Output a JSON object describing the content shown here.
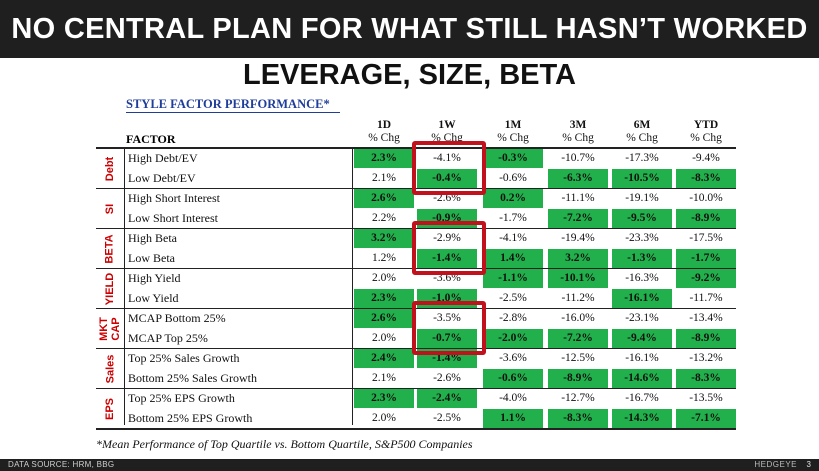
{
  "banner": {
    "title": "NO CENTRAL PLAN FOR WHAT STILL HASN’T WORKED"
  },
  "subtitle": "LEVERAGE, SIZE, BETA",
  "table": {
    "title": "STYLE FACTOR PERFORMANCE*",
    "factor_header": "FACTOR",
    "columns": [
      {
        "period": "1D",
        "unit": "% Chg"
      },
      {
        "period": "1W",
        "unit": "% Chg"
      },
      {
        "period": "1M",
        "unit": "% Chg"
      },
      {
        "period": "3M",
        "unit": "% Chg"
      },
      {
        "period": "6M",
        "unit": "% Chg"
      },
      {
        "period": "YTD",
        "unit": "% Chg"
      }
    ],
    "groups": [
      {
        "label": "Debt",
        "rows": [
          {
            "factor": "High Debt/EV",
            "values": [
              "2.3%",
              "-4.1%",
              "-0.3%",
              "-10.7%",
              "-17.3%",
              "-9.4%"
            ],
            "highlight": [
              true,
              false,
              true,
              false,
              false,
              false
            ]
          },
          {
            "factor": "Low Debt/EV",
            "values": [
              "2.1%",
              "-0.4%",
              "-0.6%",
              "-6.3%",
              "-10.5%",
              "-8.3%"
            ],
            "highlight": [
              false,
              true,
              false,
              true,
              true,
              true
            ]
          }
        ]
      },
      {
        "label": "SI",
        "rows": [
          {
            "factor": "High Short Interest",
            "values": [
              "2.6%",
              "-2.6%",
              "0.2%",
              "-11.1%",
              "-19.1%",
              "-10.0%"
            ],
            "highlight": [
              true,
              false,
              true,
              false,
              false,
              false
            ]
          },
          {
            "factor": "Low Short Interest",
            "values": [
              "2.2%",
              "-0.9%",
              "-1.7%",
              "-7.2%",
              "-9.5%",
              "-8.9%"
            ],
            "highlight": [
              false,
              true,
              false,
              true,
              true,
              true
            ]
          }
        ]
      },
      {
        "label": "BETA",
        "rows": [
          {
            "factor": "High Beta",
            "values": [
              "3.2%",
              "-2.9%",
              "-4.1%",
              "-19.4%",
              "-23.3%",
              "-17.5%"
            ],
            "highlight": [
              true,
              false,
              false,
              false,
              false,
              false
            ]
          },
          {
            "factor": "Low Beta",
            "values": [
              "1.2%",
              "-1.4%",
              "1.4%",
              "3.2%",
              "-1.3%",
              "-1.7%"
            ],
            "highlight": [
              false,
              true,
              true,
              true,
              true,
              true
            ]
          }
        ]
      },
      {
        "label": "YIELD",
        "rows": [
          {
            "factor": "High Yield",
            "values": [
              "2.0%",
              "-3.6%",
              "-1.1%",
              "-10.1%",
              "-16.3%",
              "-9.2%"
            ],
            "highlight": [
              false,
              false,
              true,
              true,
              false,
              true
            ]
          },
          {
            "factor": "Low Yield",
            "values": [
              "2.3%",
              "-1.0%",
              "-2.5%",
              "-11.2%",
              "-16.1%",
              "-11.7%"
            ],
            "highlight": [
              true,
              true,
              false,
              false,
              true,
              false
            ]
          }
        ]
      },
      {
        "label": "MKT CAP",
        "rows": [
          {
            "factor": "MCAP Bottom 25%",
            "values": [
              "2.6%",
              "-3.5%",
              "-2.8%",
              "-16.0%",
              "-23.1%",
              "-13.4%"
            ],
            "highlight": [
              true,
              false,
              false,
              false,
              false,
              false
            ]
          },
          {
            "factor": "MCAP Top 25%",
            "values": [
              "2.0%",
              "-0.7%",
              "-2.0%",
              "-7.2%",
              "-9.4%",
              "-8.9%"
            ],
            "highlight": [
              false,
              true,
              true,
              true,
              true,
              true
            ]
          }
        ]
      },
      {
        "label": "Sales",
        "rows": [
          {
            "factor": "Top 25% Sales Growth",
            "values": [
              "2.4%",
              "-1.4%",
              "-3.6%",
              "-12.5%",
              "-16.1%",
              "-13.2%"
            ],
            "highlight": [
              true,
              true,
              false,
              false,
              false,
              false
            ]
          },
          {
            "factor": "Bottom 25% Sales Growth",
            "values": [
              "2.1%",
              "-2.6%",
              "-0.6%",
              "-8.9%",
              "-14.6%",
              "-8.3%"
            ],
            "highlight": [
              false,
              false,
              true,
              true,
              true,
              true
            ]
          }
        ]
      },
      {
        "label": "EPS",
        "rows": [
          {
            "factor": "Top 25% EPS Growth",
            "values": [
              "2.3%",
              "-2.4%",
              "-4.0%",
              "-12.7%",
              "-16.7%",
              "-13.5%"
            ],
            "highlight": [
              true,
              true,
              false,
              false,
              false,
              false
            ]
          },
          {
            "factor": "Bottom 25% EPS Growth",
            "values": [
              "2.0%",
              "-2.5%",
              "1.1%",
              "-8.3%",
              "-14.3%",
              "-7.1%"
            ],
            "highlight": [
              false,
              false,
              true,
              true,
              true,
              true
            ]
          }
        ]
      }
    ]
  },
  "footnote": "*Mean Performance of Top Quartile vs. Bottom Quartile, S&P500 Companies",
  "footer": {
    "source": "DATA SOURCE: HRM, BBG",
    "brand": "HEDGEYE",
    "page": "3"
  },
  "colors": {
    "banner_bg": "#1f1f1f",
    "positive_green": "#22b04c",
    "category_red": "#cc0000",
    "highlight_box_red": "#c0111c",
    "title_blue": "#1f3d9a"
  }
}
